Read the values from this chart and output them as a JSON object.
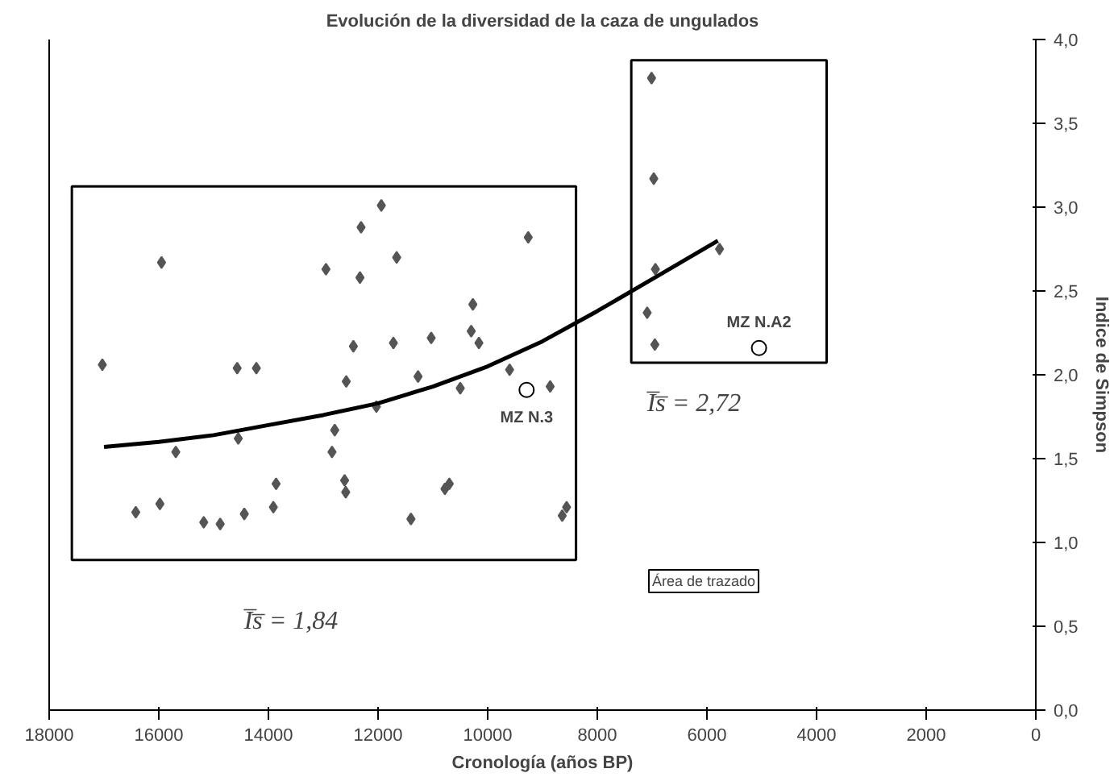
{
  "chart_data": {
    "type": "scatter",
    "title": "Evolución de la diversidad de la caza de ungulados",
    "xlabel": "Cronología (años BP)",
    "ylabel": "Indice de Simpson",
    "xlim": [
      18000,
      0
    ],
    "ylim": [
      0,
      4
    ],
    "xticks": [
      18000,
      16000,
      14000,
      12000,
      10000,
      8000,
      6000,
      4000,
      2000,
      0
    ],
    "yticks": [
      {
        "value": 0,
        "label": "0,0"
      },
      {
        "value": 0.5,
        "label": "0,5"
      },
      {
        "value": 1,
        "label": "1,0"
      },
      {
        "value": 1.5,
        "label": "1,5"
      },
      {
        "value": 2,
        "label": "2,0"
      },
      {
        "value": 2.5,
        "label": "2,5"
      },
      {
        "value": 3,
        "label": "3,0"
      },
      {
        "value": 3.5,
        "label": "3,5"
      },
      {
        "value": 4,
        "label": "4,0"
      }
    ],
    "grid": false,
    "series": [
      {
        "marker": "diamond",
        "color": "#555555",
        "x": [
          17030,
          15950,
          16420,
          15980,
          15690,
          15180,
          14880,
          14570,
          14220,
          14550,
          14440,
          13910,
          13860,
          12950,
          12310,
          12330,
          12450,
          12580,
          12790,
          12840,
          12610,
          12590,
          12030,
          11940,
          11660,
          11720,
          11030,
          11270,
          11400,
          10780,
          10700,
          10270,
          10300,
          10160,
          10500,
          9600,
          9260,
          8860,
          8560,
          8640,
          7010,
          6970,
          6940,
          5770,
          7090,
          6950
        ],
        "values": [
          2.06,
          2.67,
          1.18,
          1.23,
          1.54,
          1.12,
          1.11,
          2.04,
          2.04,
          1.62,
          1.17,
          1.21,
          1.35,
          2.63,
          2.88,
          2.58,
          2.17,
          1.96,
          1.67,
          1.54,
          1.37,
          1.3,
          1.81,
          3.01,
          2.7,
          2.19,
          2.22,
          1.99,
          1.14,
          1.32,
          1.35,
          2.42,
          2.26,
          2.19,
          1.92,
          2.03,
          2.82,
          1.93,
          1.21,
          1.16,
          3.77,
          3.17,
          2.63,
          2.75,
          2.37,
          2.18
        ]
      },
      {
        "marker": "circle",
        "color": "#ffffff",
        "x": [
          9290,
          5050
        ],
        "values": [
          1.91,
          2.16
        ]
      },
      {
        "type": "line",
        "marker": "none",
        "line_style": "solid",
        "color": "#000000",
        "x": [
          17000,
          16000,
          15000,
          14000,
          13000,
          12000,
          11000,
          10000,
          9000,
          8000,
          7000,
          5800
        ],
        "values": [
          1.57,
          1.6,
          1.64,
          1.7,
          1.76,
          1.83,
          1.93,
          2.05,
          2.2,
          2.38,
          2.57,
          2.8
        ]
      }
    ],
    "annotations": [
      {
        "text": "MZ N.3",
        "x": 9290,
        "y": 1.91
      },
      {
        "text": "MZ N.A2",
        "x": 5050,
        "y": 2.16
      },
      "I̅s̅ = 1,84",
      "I̅s̅ = 2,72",
      "Área de trazado"
    ]
  }
}
